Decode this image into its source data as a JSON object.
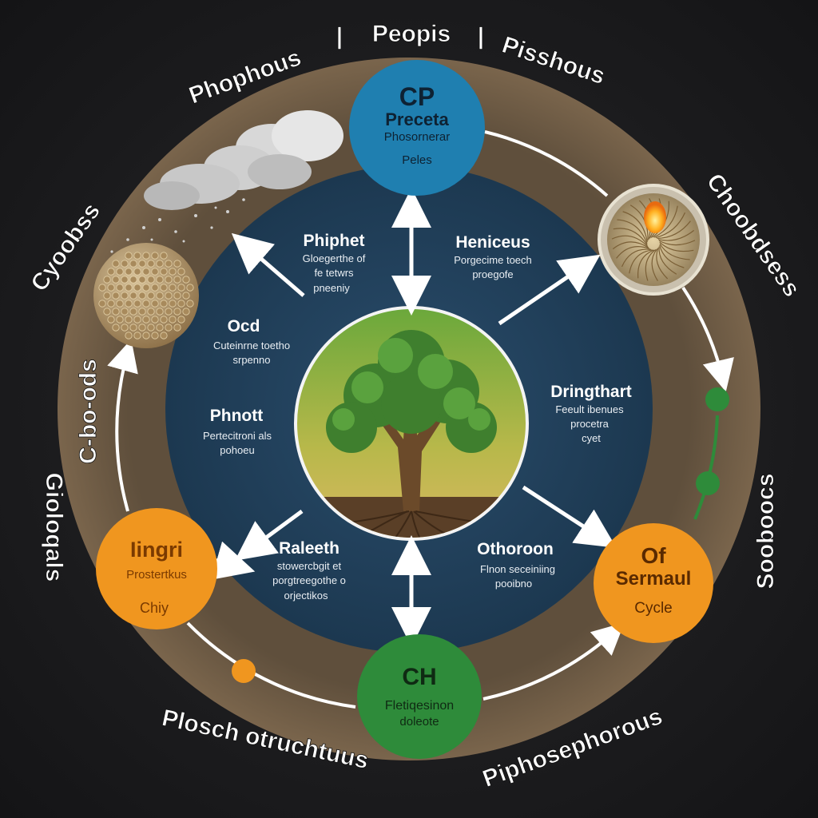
{
  "outer_labels": {
    "top_center": "Peopis",
    "top_left": "Phophous",
    "top_right": "Pisshous",
    "left_upper": "Cyoobss",
    "left_mid": "C-bo-ods",
    "left_lower": "Gioloqals",
    "right_upper": "Choobdsess",
    "right_lower": "Sooboocs",
    "bottom_left": "Plosch otruchtuus",
    "bottom_right": "Piphosephorous"
  },
  "nodes": {
    "top": {
      "title": "CP",
      "line1": "Preceta",
      "line2": "Phosornerar",
      "line3": "Peles",
      "color": "#1f7fb0"
    },
    "left": {
      "title": "Iingri",
      "line1": "Prostertkus",
      "line2": "Chiy",
      "color": "#f0961f"
    },
    "right": {
      "title": "Of",
      "line1": "Sermaul",
      "line2": "Cycle",
      "color": "#f0961f"
    },
    "bottom": {
      "title": "CH",
      "line1": "Fletiqesinon",
      "line2": "doleote",
      "color": "#2e8b3a"
    }
  },
  "inner_texts": {
    "upper_left": {
      "heading": "Phiphet",
      "line1": "Gloegerthe of",
      "line2": "fe tetwrs",
      "line3": "pneeniy"
    },
    "upper_right": {
      "heading": "Heniceus",
      "line1": "Porgecime toech",
      "line2": "proegofe"
    },
    "mid_left_1": {
      "heading": "Ocd",
      "line1": "Cuteinrne toetho",
      "line2": "srpenno"
    },
    "mid_left_2": {
      "heading": "Phnott",
      "line1": "Pertecitroni als",
      "line2": "pohoeu"
    },
    "mid_right": {
      "heading": "Dringthart",
      "line1": "Feeult ibenues",
      "line2": "procetra",
      "line3": "cyet"
    },
    "lower_left": {
      "heading": "Raleeth",
      "line1": "stowercbgit et",
      "line2": "porgtreegothe o",
      "line3": "orjectikos"
    },
    "lower_right": {
      "heading": "Othoroon",
      "line1": "Flnon seceiniing",
      "line2": "pooibno"
    }
  },
  "colors": {
    "outer_ring": "#6b5a45",
    "inner_disc": "#1f3d58",
    "arrow": "#ffffff",
    "accent_green": "#2e8b3a",
    "accent_orange": "#f0961f"
  },
  "icons": {
    "center": "tree-icon",
    "cloud": "cloud-icon",
    "seed": "seed-ball-icon",
    "root": "root-ball-icon"
  }
}
